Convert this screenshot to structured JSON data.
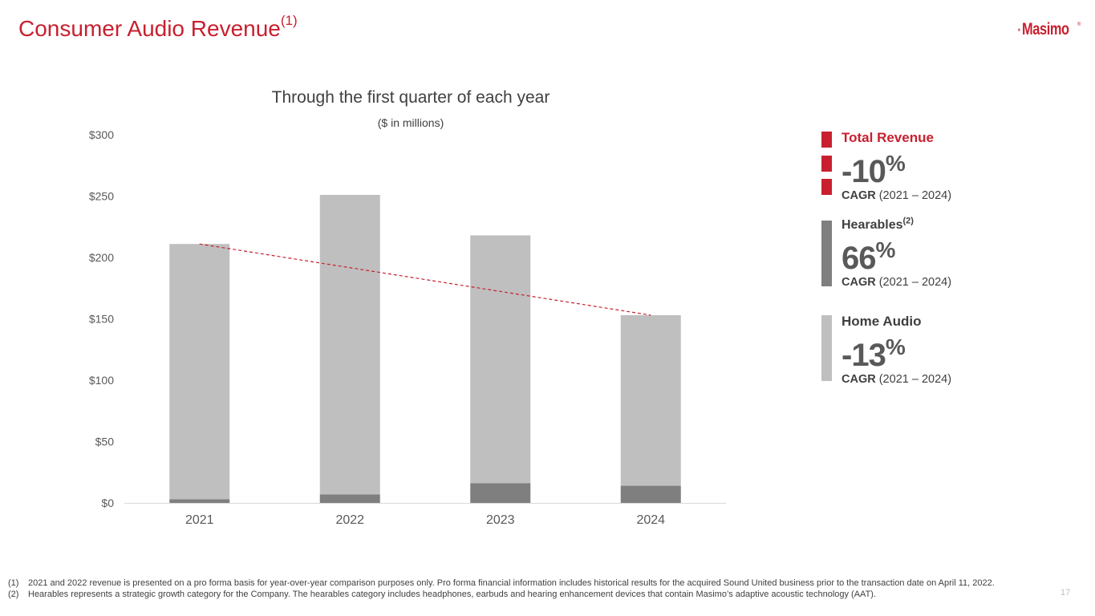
{
  "header": {
    "title": "Consumer Audio Revenue",
    "title_sup": "(1)",
    "logo_text": "Masimo",
    "logo_reg": "®"
  },
  "chart_data": {
    "type": "bar",
    "stacked": true,
    "title": "Through the first quarter of each year",
    "subtitle": "($ in millions)",
    "categories": [
      "2021",
      "2022",
      "2023",
      "2024"
    ],
    "series": [
      {
        "name": "Hearables",
        "color": "#7f7f7f",
        "values": [
          3,
          7,
          16,
          14
        ]
      },
      {
        "name": "Home Audio",
        "color": "#bfbfbf",
        "values": [
          208,
          244,
          202,
          139
        ]
      }
    ],
    "totals": [
      211,
      251,
      218,
      153
    ],
    "trendline": {
      "color": "#c8202f",
      "style": "dashed",
      "from": {
        "x": "2021",
        "y": 211
      },
      "to": {
        "x": "2024",
        "y": 153
      }
    },
    "yticks": [
      0,
      50,
      100,
      150,
      200,
      250,
      300
    ],
    "ytick_labels": [
      "$0",
      "$50",
      "$100",
      "$150",
      "$200",
      "$250",
      "$300"
    ],
    "ylim": [
      0,
      300
    ],
    "xlabel": "",
    "ylabel": ""
  },
  "legend": {
    "total": {
      "name": "Total Revenue",
      "pct": "-10",
      "pct_sign": "%",
      "cagr_label": "CAGR",
      "cagr_range": " (2021 – 2024)",
      "color": "#c8202f"
    },
    "hearables": {
      "name": "Hearables",
      "name_sup": "(2)",
      "pct": "66",
      "pct_sign": "%",
      "cagr_label": "CAGR",
      "cagr_range": " (2021 – 2024)",
      "color": "#7f7f7f"
    },
    "home_audio": {
      "name": "Home Audio",
      "pct": "-13",
      "pct_sign": "%",
      "cagr_label": "CAGR",
      "cagr_range": " (2021 – 2024)",
      "color": "#bfbfbf"
    }
  },
  "footnotes": [
    {
      "num": "(1)",
      "text": "2021 and 2022 revenue is presented on a pro forma basis for year-over-year comparison purposes only.   Pro forma financial information includes historical results for the acquired Sound United business prior to the transaction date on April 11, 2022."
    },
    {
      "num": "(2)",
      "text": "Hearables represents a strategic growth category for the Company.  The hearables category includes headphones, earbuds and hearing enhancement devices that contain Masimo’s adaptive acoustic technology (AAT)."
    }
  ],
  "page_number": "17"
}
